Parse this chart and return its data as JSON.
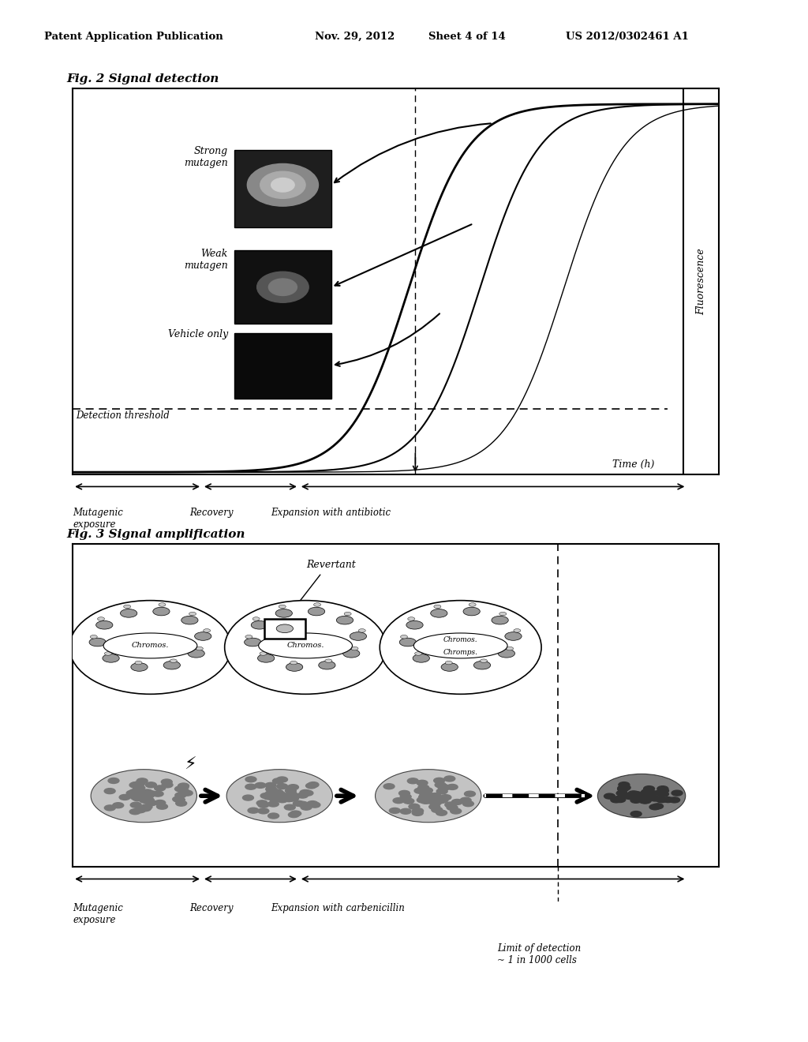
{
  "bg_color": "#ffffff",
  "header": {
    "left": "Patent Application Publication",
    "center_date": "Nov. 29, 2012",
    "center_sheet": "Sheet 4 of 14",
    "right": "US 2012/0302461 A1"
  },
  "fig2": {
    "title": "Fig. 2 Signal detection",
    "ylabel": "Fluorescence",
    "xlabel": "Time (h)",
    "threshold_label": "Detection threshold",
    "labels": [
      "Strong\nmutagen",
      "Weak\nmutagen",
      "Vehicle only"
    ],
    "bottom": {
      "mutagenic": "Mutagenic\nexposure",
      "recovery": "Recovery",
      "expansion": "Expansion with antibiotic"
    }
  },
  "fig3": {
    "title": "Fig. 3 Signal amplification",
    "revertant": "Revertant",
    "cell_label1": "Chromos.",
    "cell_label2": "Chromos.",
    "cell_label3a": "Chromos.",
    "cell_label3b": "Chromps.",
    "bottom": {
      "mutagenic": "Mutagenic\nexposure",
      "recovery": "Recovery",
      "expansion": "Expansion with carbenicillin",
      "limit": "Limit of detection\n~ 1 in 1000 cells"
    }
  }
}
